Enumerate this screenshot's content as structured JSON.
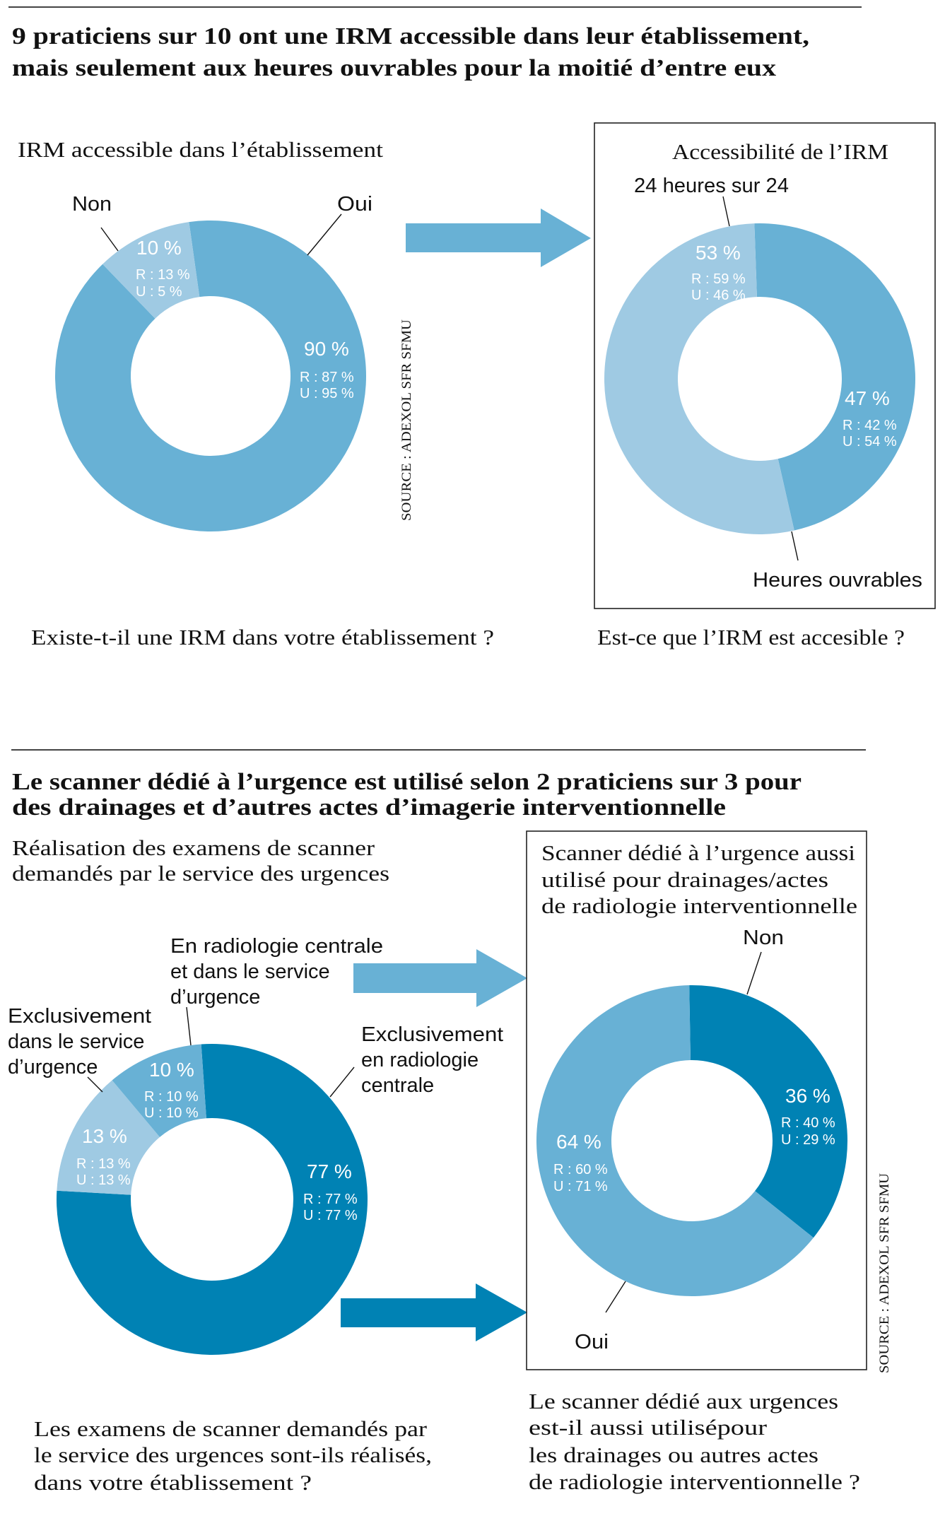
{
  "colors": {
    "light": "#9fcae3",
    "mid": "#68b1d5",
    "dark": "#0082b4",
    "text": "#111111"
  },
  "section1": {
    "title_lines": [
      "9 praticiens sur 10 ont une IRM accessible dans leur établissement,",
      "mais seulement aux heures ouvrables pour la moitié d’entre eux"
    ],
    "source": "SOURCE : ADEXOL SFR SFMU"
  },
  "section2": {
    "title_lines": [
      "Le scanner dédié à l’urgence est utilisé selon 2 praticiens sur 3 pour",
      "des drainages et d’autres actes d’imagerie interventionnelle"
    ],
    "source": "SOURCE : ADEXOL SFR SFMU"
  },
  "chart_data": [
    {
      "type": "pie",
      "donut": true,
      "title": "IRM accessible dans l’établissement",
      "question": "Existe-t-il une IRM dans votre établissement ?",
      "unit": "%",
      "segments": [
        {
          "label": "Oui",
          "value": 90,
          "value_label": "90 %",
          "r_label": "R : 87 %",
          "u_label": "U : 95 %",
          "color": "#68b1d5"
        },
        {
          "label": "Non",
          "value": 10,
          "value_label": "10 %",
          "r_label": "R : 13 %",
          "u_label": "U : 5 %",
          "color": "#9fcae3"
        }
      ]
    },
    {
      "type": "pie",
      "donut": true,
      "title": "Accessibilité de l’IRM",
      "question": "Est-ce que l’IRM est accesible ?",
      "unit": "%",
      "segments": [
        {
          "label": "Heures ouvrables",
          "value": 47,
          "value_label": "47 %",
          "r_label": "R : 42 %",
          "u_label": "U : 54 %",
          "color": "#68b1d5"
        },
        {
          "label": "24 heures sur 24",
          "value": 53,
          "value_label": "53 %",
          "r_label": "R : 59 %",
          "u_label": "U : 46 %",
          "color": "#9fcae3"
        }
      ]
    },
    {
      "type": "pie",
      "donut": true,
      "title_lines": [
        "Réalisation des examens de scanner",
        "demandés par le service des urgences"
      ],
      "question_lines": [
        "Les examens de scanner demandés par",
        "le service des urgences sont-ils réalisés,",
        "dans votre établissement ?"
      ],
      "unit": "%",
      "segments": [
        {
          "label_lines": [
            "Exclusivement",
            "en radiologie",
            "centrale"
          ],
          "value": 77,
          "value_label": "77 %",
          "r_label": "R : 77 %",
          "u_label": "U : 77 %",
          "color": "#0082b4"
        },
        {
          "label_lines": [
            "Exclusivement",
            "dans le service",
            "d’urgence"
          ],
          "value": 13,
          "value_label": "13 %",
          "r_label": "R : 13 %",
          "u_label": "U : 13 %",
          "color": "#9fcae3"
        },
        {
          "label_lines": [
            "En radiologie centrale",
            "et dans le service",
            "d’urgence"
          ],
          "value": 10,
          "value_label": "10 %",
          "r_label": "R : 10 %",
          "u_label": "U : 10 %",
          "color": "#68b1d5"
        }
      ]
    },
    {
      "type": "pie",
      "donut": true,
      "title_lines": [
        "Scanner dédié à l’urgence aussi",
        "utilisé pour drainages/actes",
        "de radiologie interventionnelle"
      ],
      "question_lines": [
        "Le scanner dédié aux urgences",
        "est-il aussi utilisépour",
        "les drainages ou autres actes",
        "de radiologie interventionnelle ?"
      ],
      "unit": "%",
      "segments": [
        {
          "label": "Non",
          "value": 36,
          "value_label": "36 %",
          "r_label": "R : 40 %",
          "u_label": "U : 29 %",
          "color": "#0082b4"
        },
        {
          "label": "Oui",
          "value": 64,
          "value_label": "64 %",
          "r_label": "R : 60 %",
          "u_label": "U : 71 %",
          "color": "#68b1d5"
        }
      ]
    }
  ]
}
